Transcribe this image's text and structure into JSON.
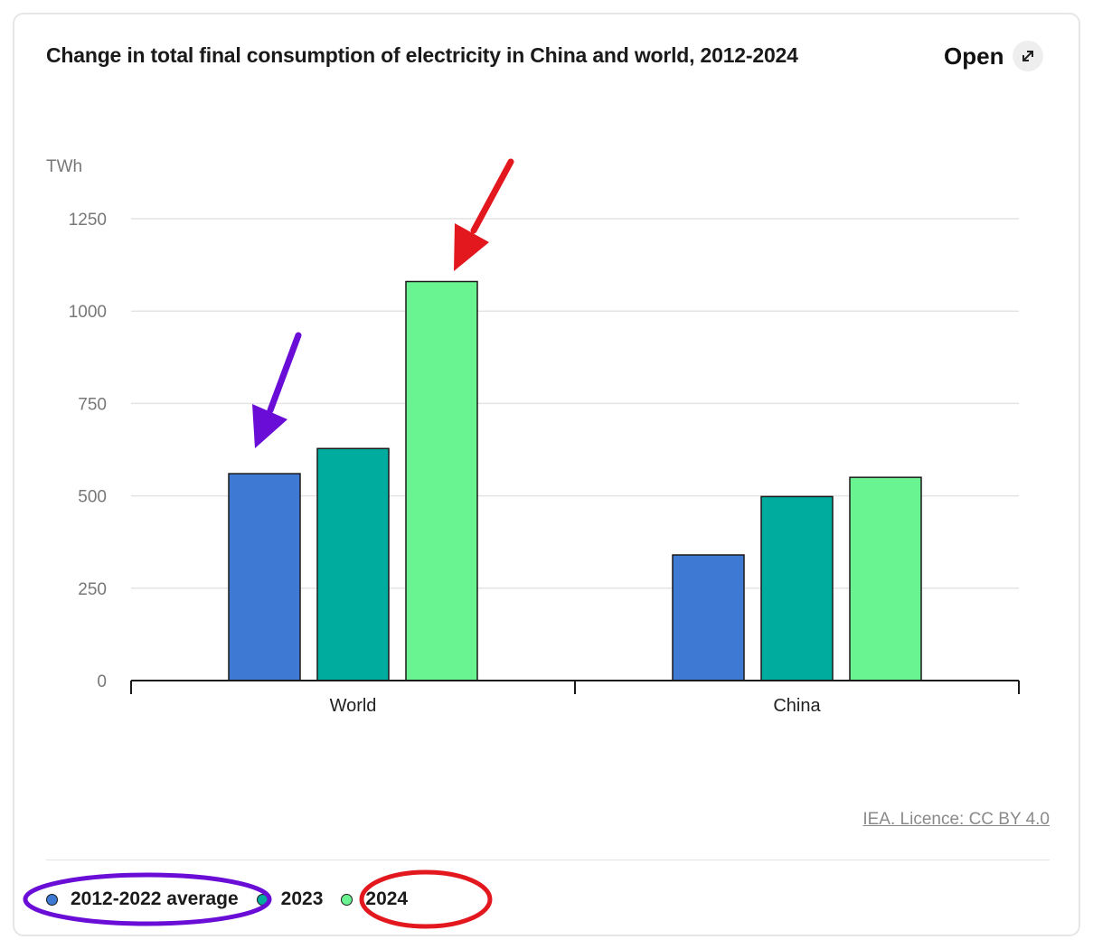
{
  "header": {
    "title": "Change in total final consumption of electricity in China and world, 2012-2024",
    "open_label": "Open"
  },
  "chart_data": {
    "type": "bar",
    "categories": [
      "World",
      "China"
    ],
    "series": [
      {
        "name": "2012-2022 average",
        "values": [
          560,
          340
        ],
        "color": "#3e79d3"
      },
      {
        "name": "2023",
        "values": [
          628,
          498
        ],
        "color": "#00ac9e"
      },
      {
        "name": "2024",
        "values": [
          1080,
          550
        ],
        "color": "#6af391"
      }
    ],
    "ylabel": "TWh",
    "ylim": [
      0,
      1250
    ],
    "yticks": [
      0,
      250,
      500,
      750,
      1000,
      1250
    ],
    "grid": true,
    "legend_placement": "bottom"
  },
  "footer": {
    "source": "IEA. Licence: CC BY 4.0"
  },
  "annotations": {
    "arrow_purple_color": "#6a0dd6",
    "arrow_red_color": "#e3171e"
  }
}
